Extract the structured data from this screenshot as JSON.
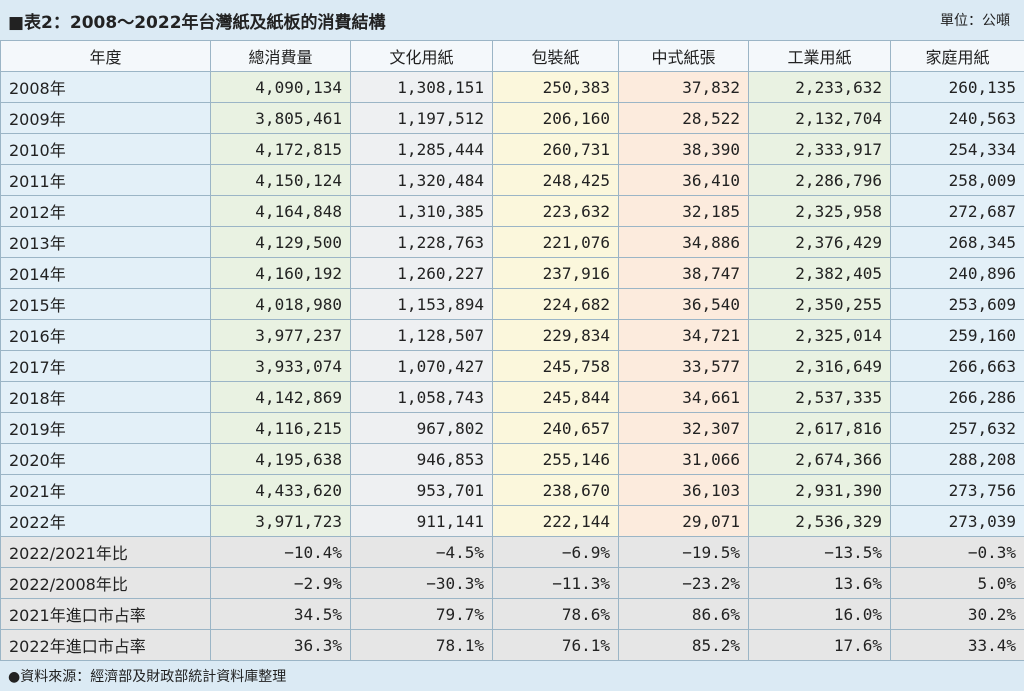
{
  "header": {
    "title": "■表2：2008～2022年台灣紙及紙板的消費結構",
    "unit": "單位：公噸"
  },
  "table": {
    "columns": [
      "年度",
      "總消費量",
      "文化用紙",
      "包裝紙",
      "中式紙張",
      "工業用紙",
      "家庭用紙"
    ],
    "rows": [
      [
        "2008年",
        "4,090,134",
        "1,308,151",
        "250,383",
        "37,832",
        "2,233,632",
        "260,135"
      ],
      [
        "2009年",
        "3,805,461",
        "1,197,512",
        "206,160",
        "28,522",
        "2,132,704",
        "240,563"
      ],
      [
        "2010年",
        "4,172,815",
        "1,285,444",
        "260,731",
        "38,390",
        "2,333,917",
        "254,334"
      ],
      [
        "2011年",
        "4,150,124",
        "1,320,484",
        "248,425",
        "36,410",
        "2,286,796",
        "258,009"
      ],
      [
        "2012年",
        "4,164,848",
        "1,310,385",
        "223,632",
        "32,185",
        "2,325,958",
        "272,687"
      ],
      [
        "2013年",
        "4,129,500",
        "1,228,763",
        "221,076",
        "34,886",
        "2,376,429",
        "268,345"
      ],
      [
        "2014年",
        "4,160,192",
        "1,260,227",
        "237,916",
        "38,747",
        "2,382,405",
        "240,896"
      ],
      [
        "2015年",
        "4,018,980",
        "1,153,894",
        "224,682",
        "36,540",
        "2,350,255",
        "253,609"
      ],
      [
        "2016年",
        "3,977,237",
        "1,128,507",
        "229,834",
        "34,721",
        "2,325,014",
        "259,160"
      ],
      [
        "2017年",
        "3,933,074",
        "1,070,427",
        "245,758",
        "33,577",
        "2,316,649",
        "266,663"
      ],
      [
        "2018年",
        "4,142,869",
        "1,058,743",
        "245,844",
        "34,661",
        "2,537,335",
        "266,286"
      ],
      [
        "2019年",
        "4,116,215",
        "967,802",
        "240,657",
        "32,307",
        "2,617,816",
        "257,632"
      ],
      [
        "2020年",
        "4,195,638",
        "946,853",
        "255,146",
        "31,066",
        "2,674,366",
        "288,208"
      ],
      [
        "2021年",
        "4,433,620",
        "953,701",
        "238,670",
        "36,103",
        "2,931,390",
        "273,756"
      ],
      [
        "2022年",
        "3,971,723",
        "911,141",
        "222,144",
        "29,071",
        "2,536,329",
        "273,039"
      ],
      [
        "2022/2021年比",
        "−10.4%",
        "−4.5%",
        "−6.9%",
        "−19.5%",
        "−13.5%",
        "−0.3%"
      ],
      [
        "2022/2008年比",
        "−2.9%",
        "−30.3%",
        "−11.3%",
        "−23.2%",
        "13.6%",
        "5.0%"
      ],
      [
        "2021年進口市占率",
        "34.5%",
        "79.7%",
        "78.6%",
        "86.6%",
        "16.0%",
        "30.2%"
      ],
      [
        "2022年進口市占率",
        "36.3%",
        "78.1%",
        "76.1%",
        "85.2%",
        "17.6%",
        "33.4%"
      ]
    ]
  },
  "footer": {
    "note": "●資料來源：經濟部及財政部統計資料庫整理"
  }
}
